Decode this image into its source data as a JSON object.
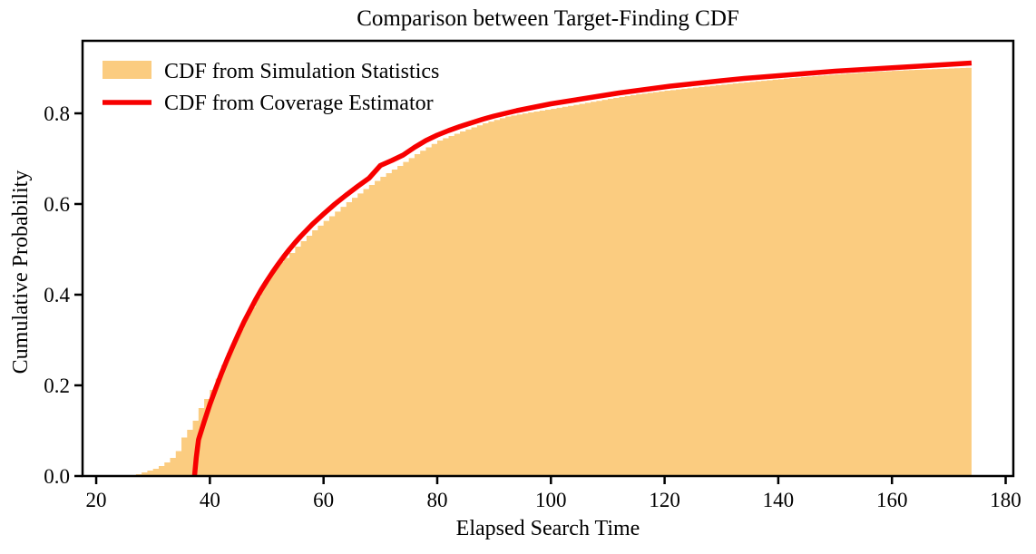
{
  "figure": {
    "title": "Comparison between Target-Finding CDF",
    "xlabel": "Elapsed Search Time",
    "ylabel": "Cumulative Probability"
  },
  "chart_data": {
    "type": "line",
    "title": "Comparison between Target-Finding CDF",
    "xlabel": "Elapsed Search Time",
    "ylabel": "Cumulative Probability",
    "xlim": [
      17.6,
      181.35
    ],
    "ylim": [
      0,
      0.96
    ],
    "xticks": [
      20,
      40,
      60,
      80,
      100,
      120,
      140,
      160,
      180
    ],
    "yticks": [
      0.0,
      0.2,
      0.4,
      0.6,
      0.8
    ],
    "ytick_labels": [
      "0.0",
      "0.2",
      "0.4",
      "0.6",
      "0.8"
    ],
    "grid": false,
    "frame_color": "#000000",
    "legend": {
      "position": "upper-left",
      "frame": false,
      "entries": [
        {
          "label": "CDF from Simulation Statistics",
          "swatch": "filled-patch",
          "color": "#FBCC80"
        },
        {
          "label": "CDF from Coverage Estimator",
          "swatch": "thick-line",
          "color": "#F70000"
        }
      ]
    },
    "series": [
      {
        "name": "CDF from Simulation Statistics",
        "render": "filled-step-cdf",
        "color": "#FBCC80",
        "step_width": 1,
        "x_end": 174,
        "points": [
          [
            26,
            0.002
          ],
          [
            27,
            0.004
          ],
          [
            28,
            0.008
          ],
          [
            29,
            0.012
          ],
          [
            30,
            0.016
          ],
          [
            31,
            0.022
          ],
          [
            32,
            0.03
          ],
          [
            33,
            0.04
          ],
          [
            34,
            0.055
          ],
          [
            35,
            0.085
          ],
          [
            36,
            0.102
          ],
          [
            37,
            0.122
          ],
          [
            38,
            0.15
          ],
          [
            39,
            0.17
          ],
          [
            40,
            0.19
          ],
          [
            41,
            0.215
          ],
          [
            42,
            0.245
          ],
          [
            43,
            0.272
          ],
          [
            44,
            0.3
          ],
          [
            45,
            0.325
          ],
          [
            46,
            0.35
          ],
          [
            47,
            0.372
          ],
          [
            48,
            0.395
          ],
          [
            49,
            0.42
          ],
          [
            50,
            0.44
          ],
          [
            51,
            0.458
          ],
          [
            52,
            0.472
          ],
          [
            53,
            0.481
          ],
          [
            54,
            0.492
          ],
          [
            55,
            0.506
          ],
          [
            56,
            0.518
          ],
          [
            57,
            0.53
          ],
          [
            58,
            0.542
          ],
          [
            61,
            0.573
          ],
          [
            64,
            0.604
          ],
          [
            67,
            0.633
          ],
          [
            70,
            0.66
          ],
          [
            73,
            0.684
          ],
          [
            76,
            0.71
          ],
          [
            80,
            0.74
          ],
          [
            84,
            0.76
          ],
          [
            88,
            0.778
          ],
          [
            92,
            0.793
          ],
          [
            96,
            0.802
          ],
          [
            100,
            0.81
          ],
          [
            105,
            0.821
          ],
          [
            110,
            0.832
          ],
          [
            115,
            0.842
          ],
          [
            120,
            0.85
          ],
          [
            126,
            0.858
          ],
          [
            132,
            0.866
          ],
          [
            138,
            0.873
          ],
          [
            144,
            0.88
          ],
          [
            150,
            0.886
          ],
          [
            156,
            0.891
          ],
          [
            162,
            0.895
          ],
          [
            168,
            0.898
          ],
          [
            174,
            0.901
          ]
        ]
      },
      {
        "name": "CDF from Coverage Estimator",
        "render": "smooth-line",
        "color": "#F70000",
        "line_width": 5.5,
        "points": [
          [
            37.3,
            0.0
          ],
          [
            37.6,
            0.04
          ],
          [
            38.0,
            0.08
          ],
          [
            39,
            0.12
          ],
          [
            40,
            0.158
          ],
          [
            41,
            0.192
          ],
          [
            42,
            0.225
          ],
          [
            43,
            0.256
          ],
          [
            44,
            0.285
          ],
          [
            45,
            0.313
          ],
          [
            46,
            0.34
          ],
          [
            47,
            0.364
          ],
          [
            48,
            0.388
          ],
          [
            49,
            0.41
          ],
          [
            50,
            0.43
          ],
          [
            51,
            0.449
          ],
          [
            52,
            0.467
          ],
          [
            53,
            0.484
          ],
          [
            54,
            0.5
          ],
          [
            55,
            0.515
          ],
          [
            56,
            0.529
          ],
          [
            57,
            0.542
          ],
          [
            58,
            0.555
          ],
          [
            60,
            0.578
          ],
          [
            62,
            0.6
          ],
          [
            64,
            0.62
          ],
          [
            66,
            0.639
          ],
          [
            68,
            0.657
          ],
          [
            70,
            0.685
          ],
          [
            72,
            0.696
          ],
          [
            74,
            0.708
          ],
          [
            76,
            0.725
          ],
          [
            78,
            0.74
          ],
          [
            80,
            0.752
          ],
          [
            82,
            0.762
          ],
          [
            84,
            0.771
          ],
          [
            86,
            0.779
          ],
          [
            88,
            0.787
          ],
          [
            90,
            0.794
          ],
          [
            92,
            0.8
          ],
          [
            94,
            0.806
          ],
          [
            96,
            0.811
          ],
          [
            98,
            0.816
          ],
          [
            100,
            0.821
          ],
          [
            103,
            0.827
          ],
          [
            106,
            0.833
          ],
          [
            109,
            0.839
          ],
          [
            112,
            0.845
          ],
          [
            115,
            0.85
          ],
          [
            118,
            0.855
          ],
          [
            121,
            0.86
          ],
          [
            124,
            0.864
          ],
          [
            127,
            0.868
          ],
          [
            130,
            0.872
          ],
          [
            134,
            0.877
          ],
          [
            138,
            0.881
          ],
          [
            142,
            0.885
          ],
          [
            146,
            0.889
          ],
          [
            150,
            0.893
          ],
          [
            154,
            0.896
          ],
          [
            158,
            0.899
          ],
          [
            162,
            0.902
          ],
          [
            166,
            0.905
          ],
          [
            170,
            0.908
          ],
          [
            174,
            0.911
          ]
        ]
      }
    ]
  }
}
